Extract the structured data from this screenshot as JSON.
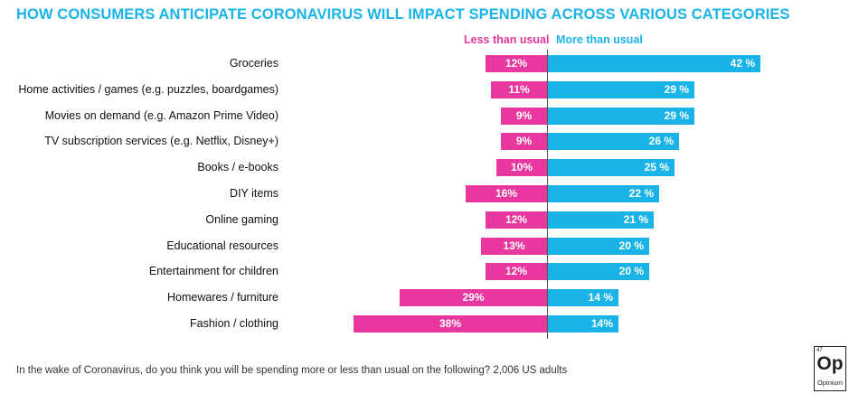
{
  "title": "HOW CONSUMERS ANTICIPATE CORONAVIRUS WILL IMPACT SPENDING ACROSS VARIOUS CATEGORIES",
  "legend": {
    "less": "Less than usual",
    "more": "More than usual"
  },
  "footnote": "In the wake of Coronavirus, do you think you will  be spending more or less than usual on the following? 2,006 US  adults",
  "logo": {
    "symbol": "Op",
    "name": "Opinium",
    "number": "47"
  },
  "colors": {
    "title": "#1ab4e8",
    "less": "#e8389f",
    "more": "#19b3e7"
  },
  "chart_data": {
    "type": "bar",
    "orientation": "horizontal-diverging",
    "categories": [
      "Groceries",
      "Home activities / games (e.g. puzzles, boardgames)",
      "Movies on demand (e.g. Amazon Prime Video)",
      "TV subscription services (e.g. Netflix, Disney+)",
      "Books / e-books",
      "DIY items",
      "Online gaming",
      "Educational resources",
      "Entertainment for children",
      "Homewares / furniture",
      "Fashion / clothing"
    ],
    "series": [
      {
        "name": "Less than usual",
        "values": [
          12,
          11,
          9,
          9,
          10,
          16,
          12,
          13,
          12,
          29,
          38
        ],
        "labels": [
          "12%",
          "11%",
          "9%",
          "9%",
          "10%",
          "16%",
          "12%",
          "13%",
          "12%",
          "29%",
          "38%"
        ]
      },
      {
        "name": "More than usual",
        "values": [
          42,
          29,
          29,
          26,
          25,
          22,
          21,
          20,
          20,
          14,
          14
        ],
        "labels": [
          "42 %",
          "29 %",
          "29 %",
          "26 %",
          "25 %",
          "22 %",
          "21 %",
          "20 %",
          "20 %",
          "14 %",
          "14%"
        ]
      }
    ],
    "unit": "%"
  }
}
